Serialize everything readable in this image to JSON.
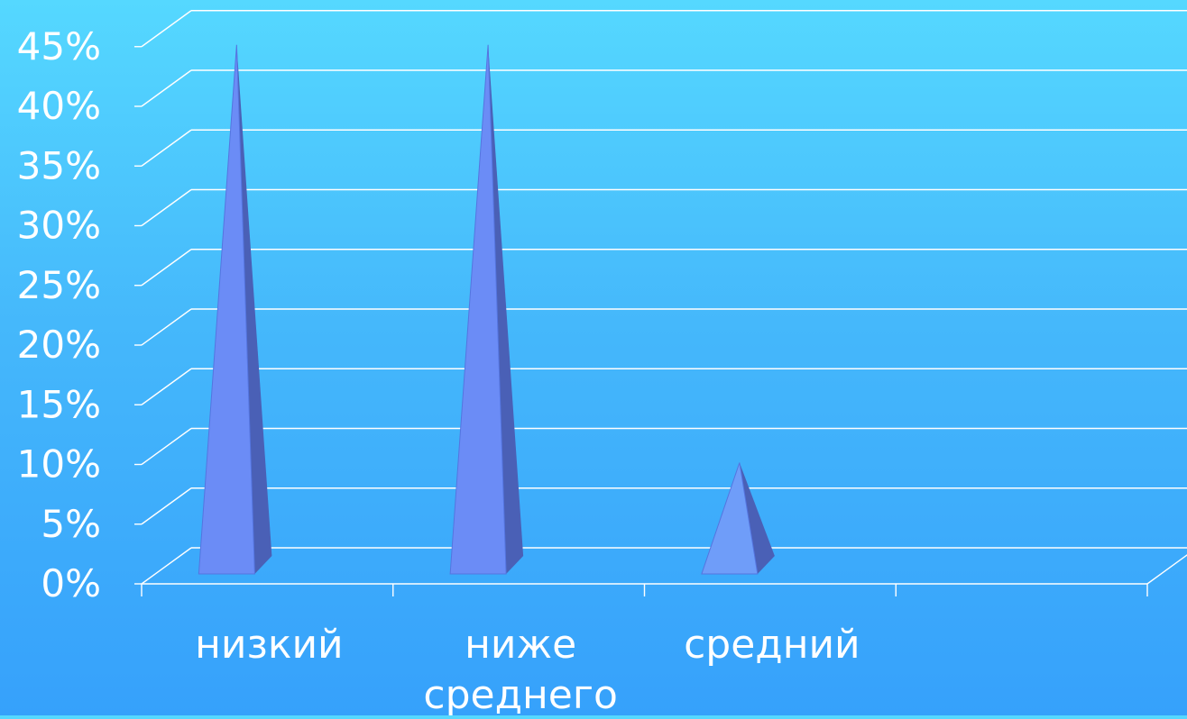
{
  "chart_data": {
    "type": "bar",
    "bar_shape": "pyramid",
    "three_d": true,
    "categories": [
      "низкий",
      "ниже среднего",
      "средний",
      ""
    ],
    "category_lines": [
      [
        "низкий"
      ],
      [
        "ниже",
        "среднего"
      ],
      [
        "средний"
      ],
      []
    ],
    "values": [
      45,
      45,
      10,
      0
    ],
    "y_ticks": [
      "0%",
      "5%",
      "10%",
      "15%",
      "20%",
      "25%",
      "30%",
      "35%",
      "40%",
      "45%"
    ],
    "ylim": [
      0,
      45
    ],
    "y_step": 5,
    "grid": true,
    "legend": "none",
    "title": "",
    "xlabel": "",
    "ylabel": ""
  },
  "colors": {
    "background_top": "#55d8ff",
    "background_bottom": "#36a1fb",
    "gridline": "#ffffff",
    "text": "#ffffff",
    "bar_front_strong": "#6b8cf6",
    "bar_front_light": "#6f9df9",
    "bar_side": "#4a60b6"
  }
}
